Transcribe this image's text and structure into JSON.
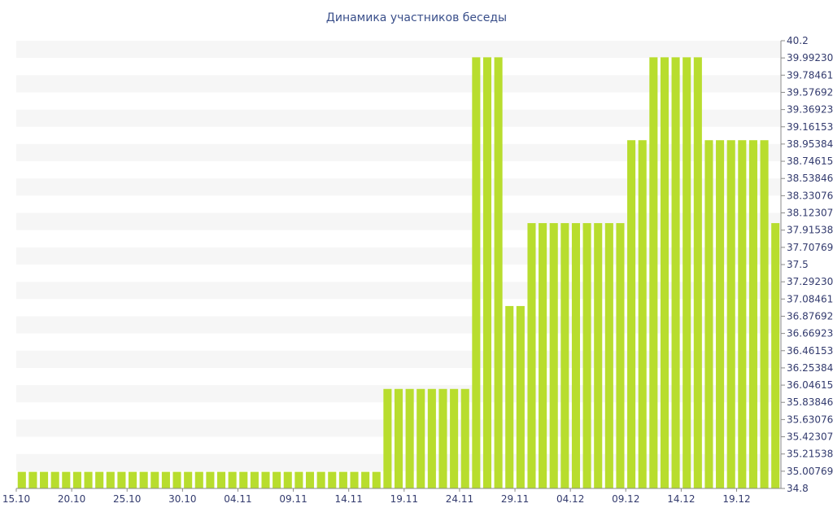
{
  "chart_data": {
    "type": "bar",
    "title": "Динамика участников беседы",
    "color": "#b8dd2e",
    "band_color": "#f6f6f6",
    "axis_color": "#8a8a8a",
    "ylim": [
      34.8,
      40.2
    ],
    "y_position": "right",
    "grid_bands": true,
    "x_start": "15.10",
    "x_step_days": 1,
    "yticks": [
      "40.2",
      "39.99230",
      "39.78461",
      "39.57692",
      "39.36923",
      "39.16153",
      "38.95384",
      "38.74615",
      "38.53846",
      "38.33076",
      "38.12307",
      "37.91538",
      "37.70769",
      "37.5",
      "37.29230",
      "37.08461",
      "36.87692",
      "36.66923",
      "36.46153",
      "36.25384",
      "36.04615",
      "35.83846",
      "35.63076",
      "35.42307",
      "35.21538",
      "35.00769",
      "34.8"
    ],
    "xticks": [
      "15.10",
      "20.10",
      "25.10",
      "30.10",
      "04.11",
      "09.11",
      "14.11",
      "19.11",
      "24.11",
      "29.11",
      "04.12",
      "09.12",
      "14.12",
      "19.12"
    ],
    "values": [
      35,
      35,
      35,
      35,
      35,
      35,
      35,
      35,
      35,
      35,
      35,
      35,
      35,
      35,
      35,
      35,
      35,
      35,
      35,
      35,
      35,
      35,
      35,
      35,
      35,
      35,
      35,
      35,
      35,
      35,
      35,
      35,
      35,
      36,
      36,
      36,
      36,
      36,
      36,
      36,
      36,
      40,
      40,
      40,
      37,
      37,
      38,
      38,
      38,
      38,
      38,
      38,
      38,
      38,
      38,
      39,
      39,
      40,
      40,
      40,
      40,
      40,
      39,
      39,
      39,
      39,
      39,
      39,
      38
    ]
  }
}
